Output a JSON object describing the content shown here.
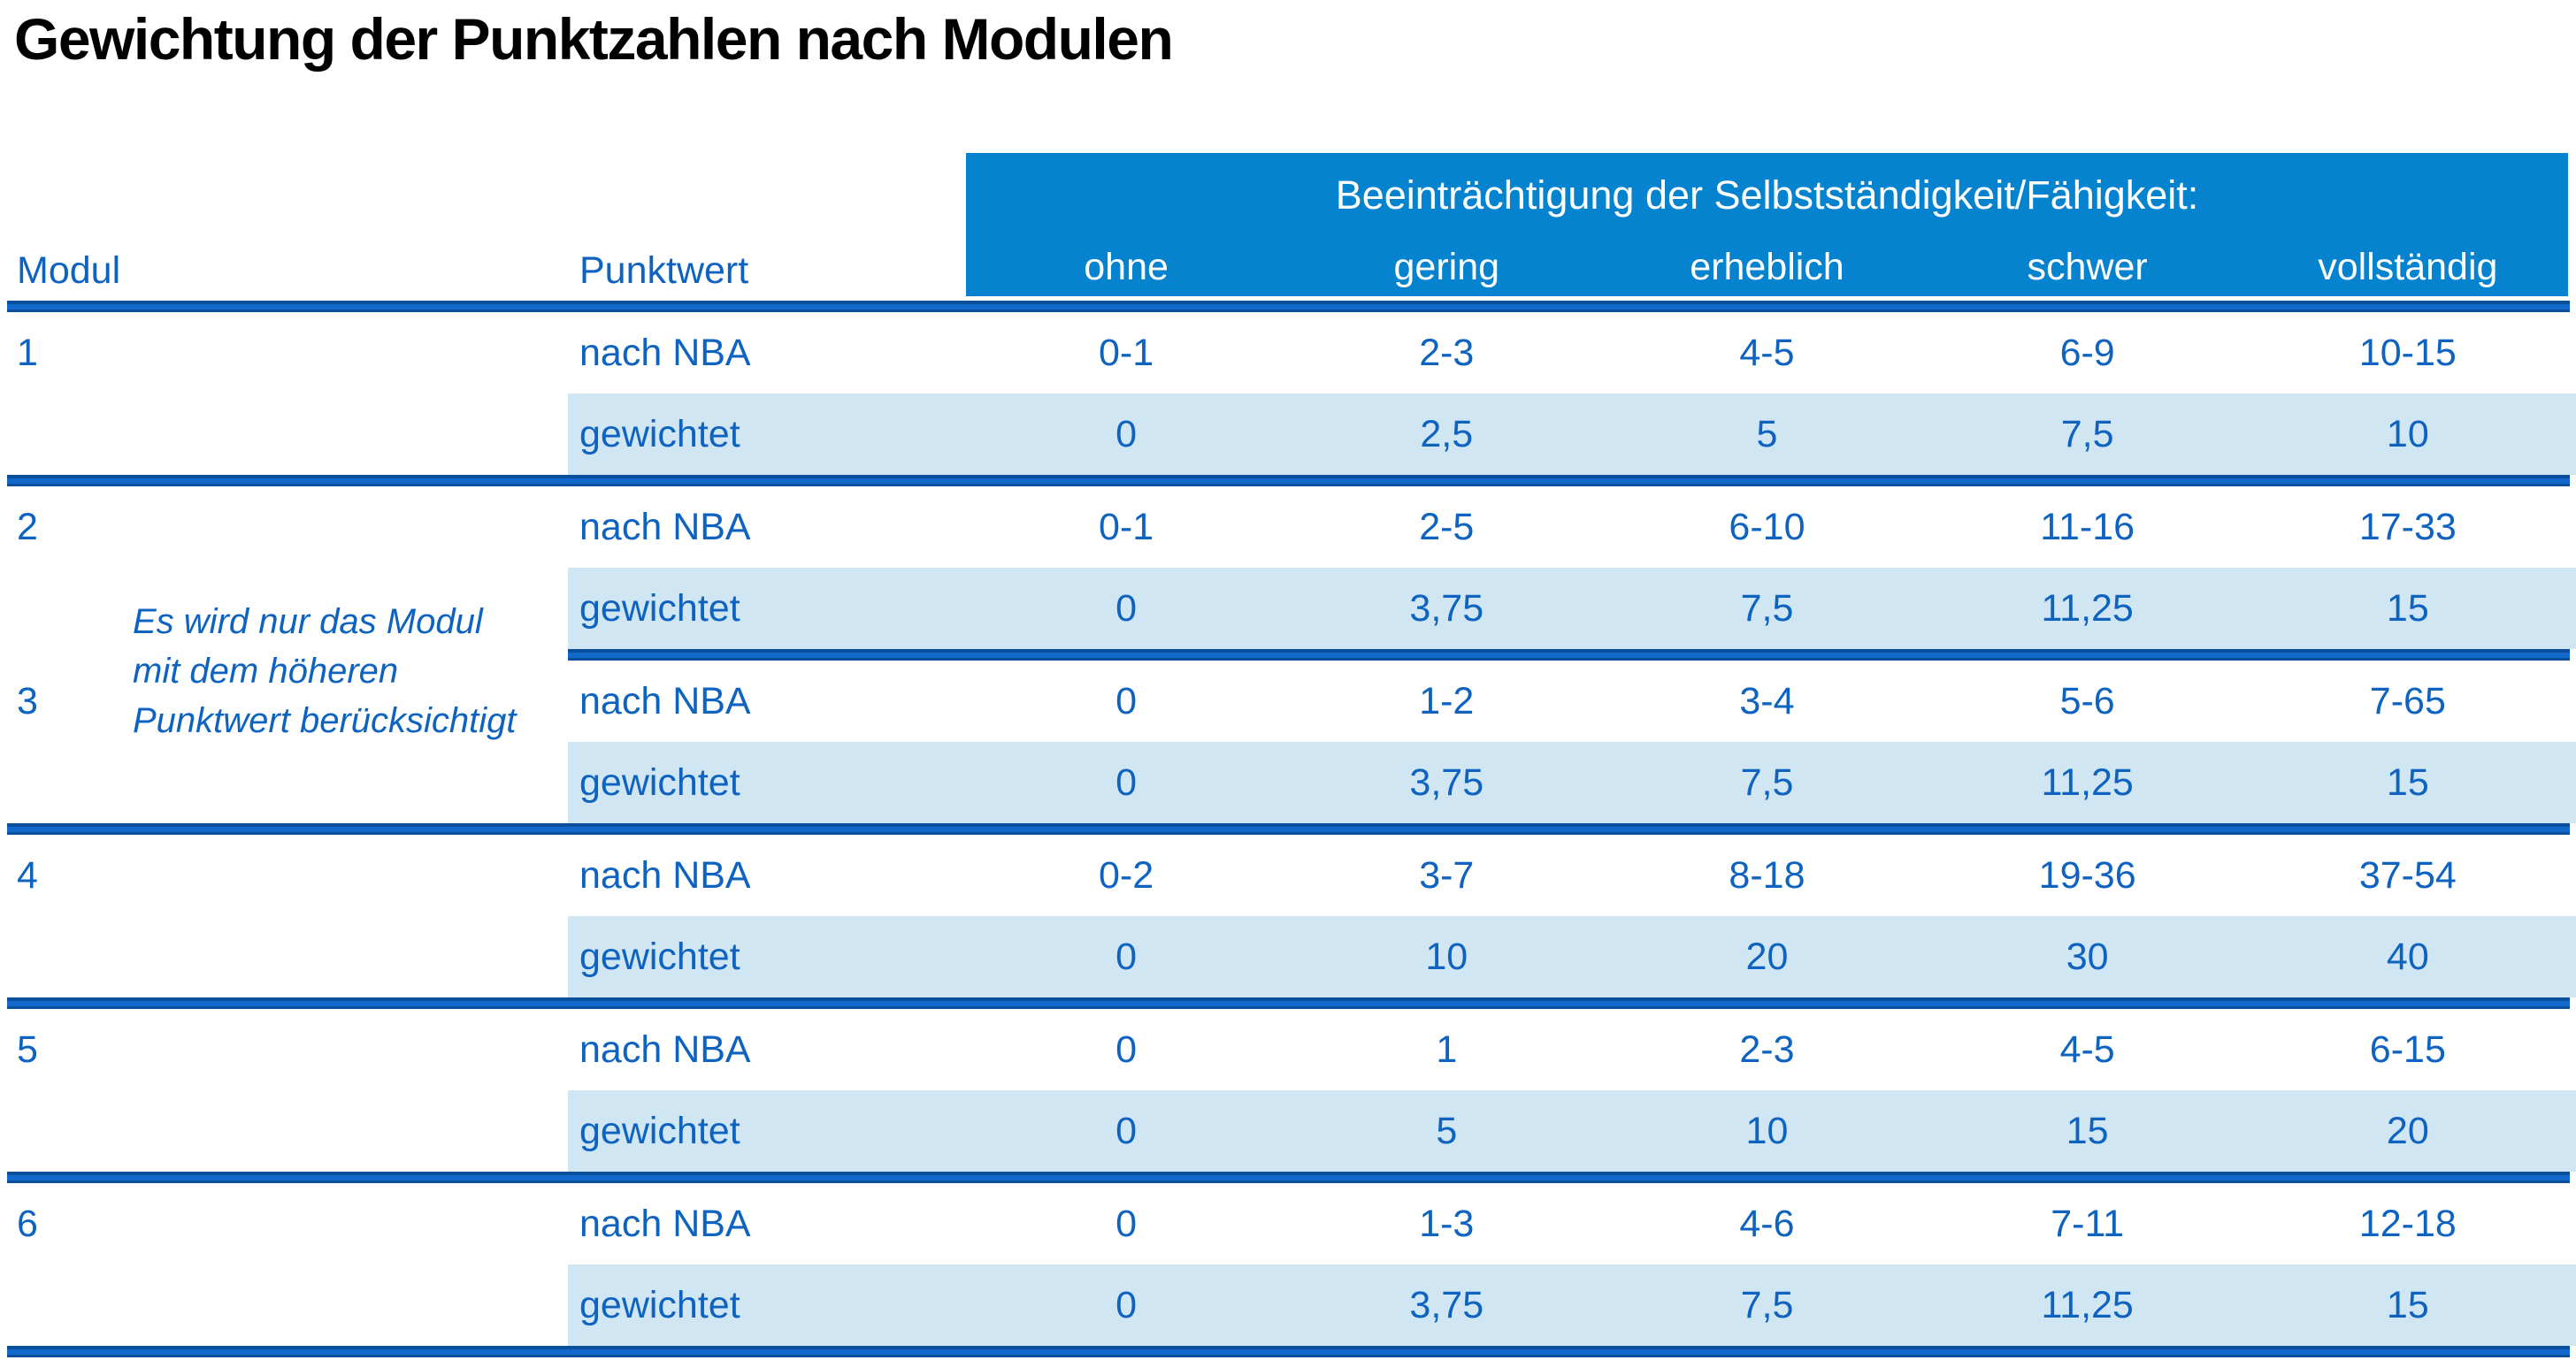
{
  "title": "Gewichtung der Punktzahlen nach Modulen",
  "colors": {
    "text_blue": "#0e63c0",
    "header_band_blue": "#0583cf",
    "shaded_row_blue": "#d0e6f3",
    "separator_blue": "#1368cb",
    "title_black": "#000000"
  },
  "table": {
    "col_headers": {
      "modul": "Modul",
      "punktwert": "Punktwert"
    },
    "impairment_header": "Beeinträchtigung der Selbstständigkeit/Fähigkeit:",
    "severity_levels": [
      "ohne",
      "gering",
      "erheblich",
      "schwer",
      "vollständig"
    ],
    "row_labels": {
      "nach_nba": "nach NBA",
      "gewichtet": "gewichtet"
    },
    "note": {
      "lines": [
        "Es wird nur das Modul",
        "mit dem höheren",
        "Punktwert berücksichtigt"
      ]
    },
    "modules": [
      {
        "id": "1",
        "nach_nba": [
          "0-1",
          "2-3",
          "4-5",
          "6-9",
          "10-15"
        ],
        "gewichtet": [
          "0",
          "2,5",
          "5",
          "7,5",
          "10"
        ]
      },
      {
        "id": "2",
        "nach_nba": [
          "0-1",
          "2-5",
          "6-10",
          "11-16",
          "17-33"
        ],
        "gewichtet": [
          "0",
          "3,75",
          "7,5",
          "11,25",
          "15"
        ]
      },
      {
        "id": "3",
        "nach_nba": [
          "0",
          "1-2",
          "3-4",
          "5-6",
          "7-65"
        ],
        "gewichtet": [
          "0",
          "3,75",
          "7,5",
          "11,25",
          "15"
        ]
      },
      {
        "id": "4",
        "nach_nba": [
          "0-2",
          "3-7",
          "8-18",
          "19-36",
          "37-54"
        ],
        "gewichtet": [
          "0",
          "10",
          "20",
          "30",
          "40"
        ]
      },
      {
        "id": "5",
        "nach_nba": [
          "0",
          "1",
          "2-3",
          "4-5",
          "6-15"
        ],
        "gewichtet": [
          "0",
          "5",
          "10",
          "15",
          "20"
        ]
      },
      {
        "id": "6",
        "nach_nba": [
          "0",
          "1-3",
          "4-6",
          "7-11",
          "12-18"
        ],
        "gewichtet": [
          "0",
          "3,75",
          "7,5",
          "11,25",
          "15"
        ]
      }
    ]
  }
}
